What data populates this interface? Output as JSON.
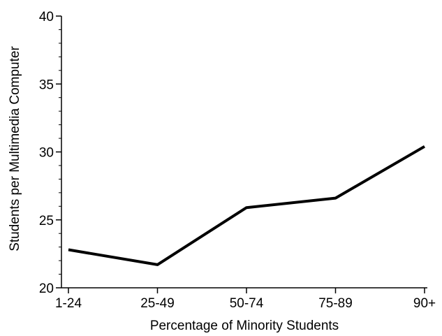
{
  "chart_data": {
    "type": "line",
    "categories": [
      "1-24",
      "25-49",
      "50-74",
      "75-89",
      "90+"
    ],
    "series": [
      {
        "values": [
          22.8,
          21.7,
          25.9,
          26.6,
          30.4
        ]
      }
    ],
    "xlabel": "Percentage of Minority Students",
    "ylabel": "Students per Multimedia Computer",
    "ylim": [
      20,
      40
    ],
    "yticks": [
      20,
      25,
      30,
      35,
      40
    ],
    "grid": false,
    "legend": "none",
    "line_color": "#000000"
  }
}
